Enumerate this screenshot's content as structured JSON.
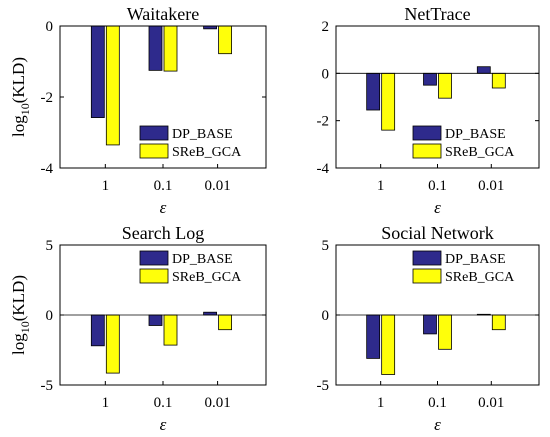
{
  "figure": {
    "background": "#ffffff",
    "colors": {
      "DP_BASE": "#2e2a8c",
      "SReB_GCA": "#ffff0a"
    }
  },
  "chart_data": [
    {
      "type": "bar",
      "title": "Waitakere",
      "xlabel": "ε",
      "ylabel_base": "log",
      "ylabel_sub": "10",
      "ylabel_rest": "(KLD)",
      "categories": [
        "1",
        "0.1",
        "0.01"
      ],
      "ylim": [
        -4,
        0
      ],
      "yticks": [
        "0",
        "-2",
        "-4"
      ],
      "ytick_values": [
        0,
        -2,
        -4
      ],
      "legend_position": "bottom-right",
      "series": [
        {
          "name": "DP_BASE",
          "values": [
            -2.58,
            -1.25,
            -0.08
          ]
        },
        {
          "name": "SReB_GCA",
          "values": [
            -3.35,
            -1.27,
            -0.78
          ]
        }
      ]
    },
    {
      "type": "bar",
      "title": "NetTrace",
      "xlabel": "ε",
      "ylabel_base": "",
      "ylabel_sub": "",
      "ylabel_rest": "",
      "categories": [
        "1",
        "0.1",
        "0.01"
      ],
      "ylim": [
        -4,
        2
      ],
      "yticks": [
        "2",
        "0",
        "-2",
        "-4"
      ],
      "ytick_values": [
        2,
        0,
        -2,
        -4
      ],
      "legend_position": "bottom-right",
      "series": [
        {
          "name": "DP_BASE",
          "values": [
            -1.55,
            -0.5,
            0.28
          ]
        },
        {
          "name": "SReB_GCA",
          "values": [
            -2.4,
            -1.05,
            -0.62
          ]
        }
      ]
    },
    {
      "type": "bar",
      "title": "Search Log",
      "xlabel": "ε",
      "ylabel_base": "log",
      "ylabel_sub": "10",
      "ylabel_rest": "(KLD)",
      "categories": [
        "1",
        "0.1",
        "0.01"
      ],
      "ylim": [
        -5,
        5
      ],
      "yticks": [
        "5",
        "0",
        "-5"
      ],
      "ytick_values": [
        5,
        0,
        -5
      ],
      "legend_position": "top-right",
      "series": [
        {
          "name": "DP_BASE",
          "values": [
            -2.2,
            -0.75,
            0.2
          ]
        },
        {
          "name": "SReB_GCA",
          "values": [
            -4.15,
            -2.15,
            -1.05
          ]
        }
      ]
    },
    {
      "type": "bar",
      "title": "Social Network",
      "xlabel": "ε",
      "ylabel_base": "",
      "ylabel_sub": "",
      "ylabel_rest": "",
      "categories": [
        "1",
        "0.1",
        "0.01"
      ],
      "ylim": [
        -5,
        5
      ],
      "yticks": [
        "5",
        "0",
        "-5"
      ],
      "ytick_values": [
        5,
        0,
        -5
      ],
      "legend_position": "top-right",
      "series": [
        {
          "name": "DP_BASE",
          "values": [
            -3.1,
            -1.35,
            0.05
          ]
        },
        {
          "name": "SReB_GCA",
          "values": [
            -4.25,
            -2.45,
            -1.05
          ]
        }
      ]
    }
  ]
}
